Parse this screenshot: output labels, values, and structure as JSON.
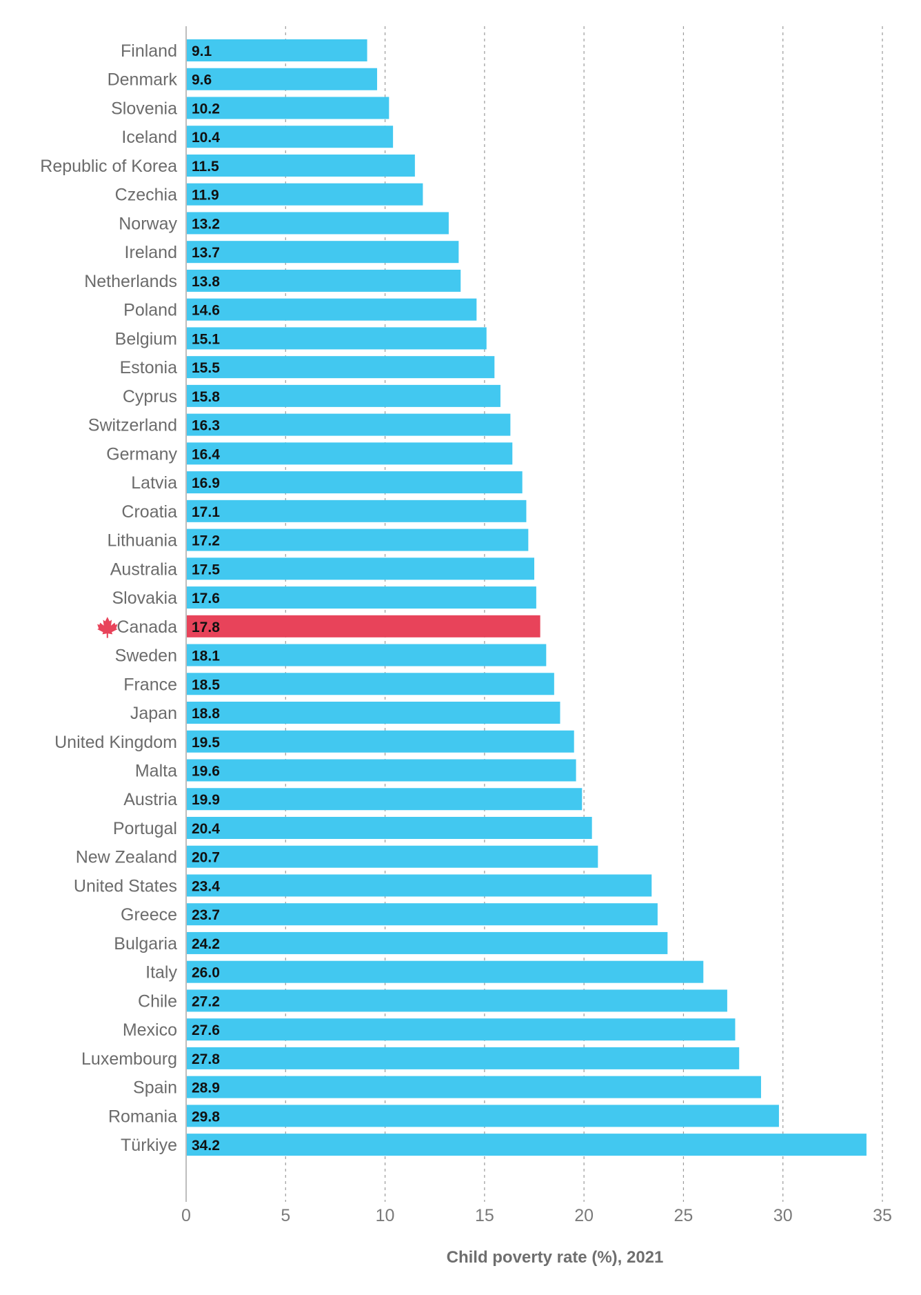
{
  "chart_data": {
    "type": "bar",
    "orientation": "horizontal",
    "title": "",
    "xlabel": "Child poverty rate (%), 2021",
    "ylabel": "",
    "xlim": [
      0,
      35
    ],
    "xticks": [
      0,
      5,
      10,
      15,
      20,
      25,
      30,
      35
    ],
    "grid": "vertical dashed",
    "colors": {
      "default": "#42C8F0",
      "highlight": "#E8435A",
      "highlight_icon": "#E8435A"
    },
    "highlight": {
      "category": "Canada",
      "icon": "maple-leaf-icon"
    },
    "categories": [
      "Finland",
      "Denmark",
      "Slovenia",
      "Iceland",
      "Republic of Korea",
      "Czechia",
      "Norway",
      "Ireland",
      "Netherlands",
      "Poland",
      "Belgium",
      "Estonia",
      "Cyprus",
      "Switzerland",
      "Germany",
      "Latvia",
      "Croatia",
      "Lithuania",
      "Australia",
      "Slovakia",
      "Canada",
      "Sweden",
      "France",
      "Japan",
      "United Kingdom",
      "Malta",
      "Austria",
      "Portugal",
      "New Zealand",
      "United States",
      "Greece",
      "Bulgaria",
      "Italy",
      "Chile",
      "Mexico",
      "Luxembourg",
      "Spain",
      "Romania",
      "Türkiye"
    ],
    "values": [
      9.1,
      9.6,
      10.2,
      10.4,
      11.5,
      11.9,
      13.2,
      13.7,
      13.8,
      14.6,
      15.1,
      15.5,
      15.8,
      16.3,
      16.4,
      16.9,
      17.1,
      17.2,
      17.5,
      17.6,
      17.8,
      18.1,
      18.5,
      18.8,
      19.5,
      19.6,
      19.9,
      20.4,
      20.7,
      23.4,
      23.7,
      24.2,
      26.0,
      27.2,
      27.6,
      27.8,
      28.9,
      29.8,
      34.2
    ],
    "value_labels": [
      "9.1",
      "9.6",
      "10.2",
      "10.4",
      "11.5",
      "11.9",
      "13.2",
      "13.7",
      "13.8",
      "14.6",
      "15.1",
      "15.5",
      "15.8",
      "16.3",
      "16.4",
      "16.9",
      "17.1",
      "17.2",
      "17.5",
      "17.6",
      "17.8",
      "18.1",
      "18.5",
      "18.8",
      "19.5",
      "19.6",
      "19.9",
      "20.4",
      "20.7",
      "23.4",
      "23.7",
      "24.2",
      "26.0",
      "27.2",
      "27.6",
      "27.8",
      "28.9",
      "29.8",
      "34.2"
    ]
  }
}
